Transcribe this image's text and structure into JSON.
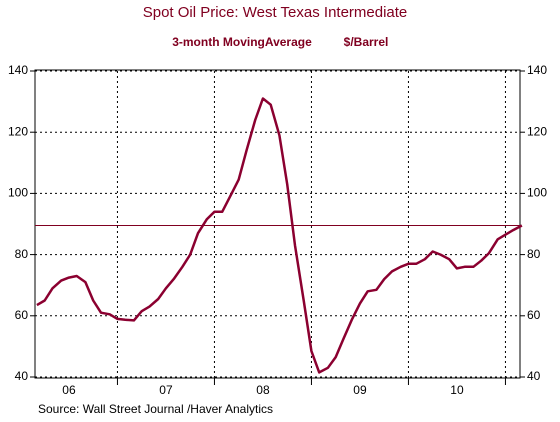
{
  "chart_data": {
    "type": "line",
    "title": "Spot Oil Price: West Texas Intermediate",
    "subtitle": "3-month MovingAverage",
    "unit_label": "$/Barrel",
    "source": "Source:  Wall Street Journal /Haver Analytics",
    "x": [
      2006.17,
      2006.25,
      2006.33,
      2006.42,
      2006.5,
      2006.58,
      2006.67,
      2006.75,
      2006.83,
      2006.92,
      2007,
      2007.08,
      2007.17,
      2007.25,
      2007.33,
      2007.42,
      2007.5,
      2007.58,
      2007.67,
      2007.75,
      2007.83,
      2007.92,
      2008,
      2008.08,
      2008.17,
      2008.25,
      2008.33,
      2008.42,
      2008.5,
      2008.58,
      2008.67,
      2008.75,
      2008.83,
      2008.92,
      2009,
      2009.08,
      2009.17,
      2009.25,
      2009.33,
      2009.42,
      2009.5,
      2009.58,
      2009.67,
      2009.75,
      2009.83,
      2009.92,
      2010,
      2010.08,
      2010.17,
      2010.25,
      2010.33,
      2010.42,
      2010.5,
      2010.58,
      2010.67,
      2010.75,
      2010.83,
      2010.92,
      2011,
      2011.08,
      2011.17
    ],
    "series": [
      {
        "name": "3-month MovingAverage",
        "color": "#8b0030",
        "values": [
          63.5,
          65,
          69,
          71.5,
          72.5,
          73,
          71,
          65,
          61,
          60.5,
          59,
          58.7,
          58.5,
          61.5,
          63,
          65.5,
          69,
          72,
          76,
          80,
          87,
          91.5,
          94,
          94,
          99.5,
          104.5,
          114,
          124,
          131,
          129,
          119,
          103,
          83,
          65,
          48.5,
          41.5,
          43,
          46.5,
          52.5,
          59,
          64,
          68,
          68.5,
          72,
          74.5,
          76,
          77,
          77,
          78.5,
          81,
          80,
          78.5,
          75.5,
          76,
          76,
          78,
          80.5,
          85,
          86.5,
          88,
          89.5
        ]
      }
    ],
    "hline": 89.5,
    "hline_color": "#800020",
    "xlim": [
      2006.15,
      2011.15
    ],
    "xticks": [
      {
        "value": 2006.5,
        "label": "06"
      },
      {
        "value": 2007.5,
        "label": "07"
      },
      {
        "value": 2008.5,
        "label": "08"
      },
      {
        "value": 2009.5,
        "label": "09"
      },
      {
        "value": 2010.5,
        "label": "10"
      }
    ],
    "xgrid": [
      2007,
      2008,
      2009,
      2010,
      2011
    ],
    "ylim": [
      40,
      140
    ],
    "yticks": [
      40,
      60,
      80,
      100,
      120,
      140
    ],
    "grid": true
  }
}
